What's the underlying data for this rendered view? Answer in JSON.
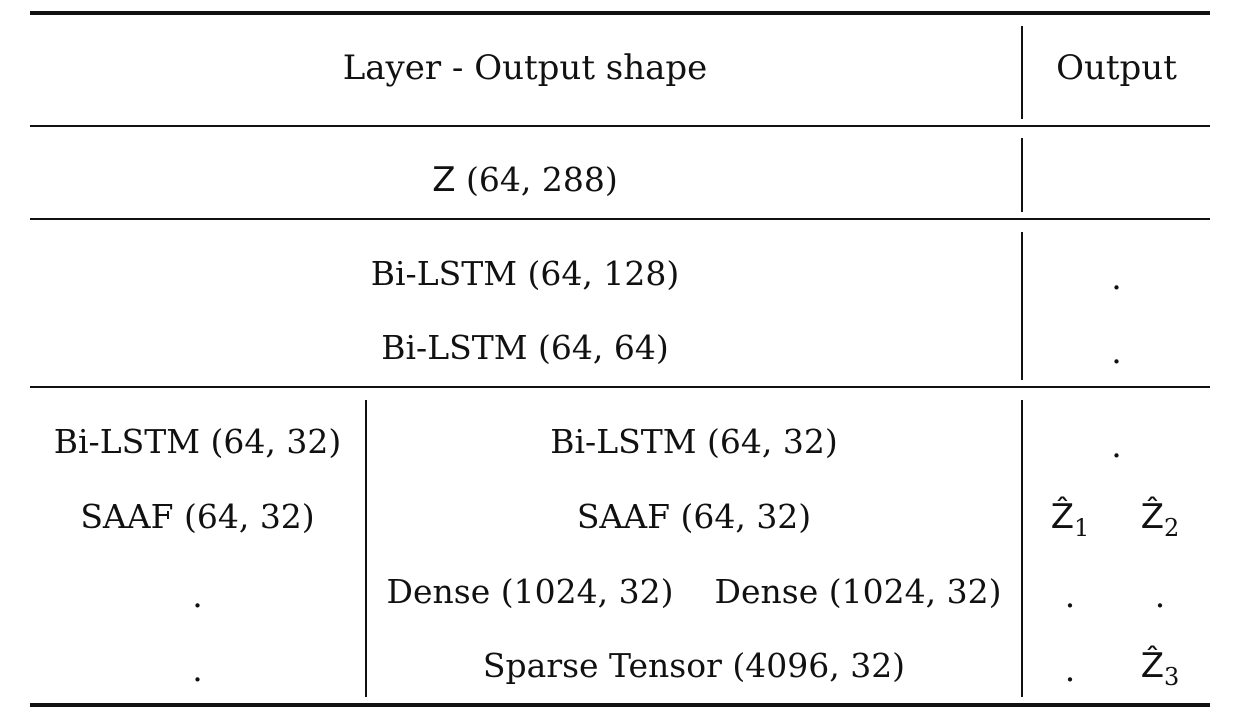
{
  "table": {
    "header": {
      "layer": "Layer - Output shape",
      "output": "Output"
    },
    "input_row": {
      "symbol": "Z",
      "shape": "(64, 288)"
    },
    "encoder_rows": [
      {
        "layer": "Bi-LSTM (64, 128)",
        "output": "."
      },
      {
        "layer": "Bi-LSTM (64, 64)",
        "output": "."
      }
    ],
    "branch_rows": [
      {
        "left": "Bi-LSTM (64, 32)",
        "middle": "Bi-LSTM (64, 32)",
        "output": "."
      },
      {
        "left": "SAAF (64, 32)",
        "middle": "SAAF (64, 32)",
        "output_a": "Ẑ",
        "output_a_sub": "1",
        "output_b": "Ẑ",
        "output_b_sub": "2"
      },
      {
        "left": ".",
        "middle_a": "Dense (1024, 32)",
        "middle_b": "Dense (1024, 32)",
        "output_a": ".",
        "output_b": "."
      },
      {
        "left": ".",
        "middle": "Sparse Tensor (4096, 32)",
        "output_a": ".",
        "output_b": "Ẑ",
        "output_b_sub": "3"
      }
    ]
  }
}
